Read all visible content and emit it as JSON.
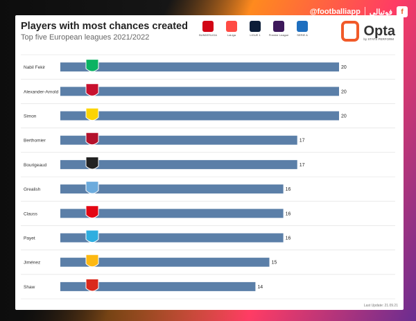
{
  "brand": {
    "handle": "@footballiapp",
    "name_fa": "فوتبالی"
  },
  "chart_data": {
    "type": "bar",
    "orientation": "horizontal",
    "title": "Players with most chances created",
    "subtitle": "Top five European leagues 2021/2022",
    "categories": [
      "Nabil Fekir",
      "Alexander-Arnold",
      "Simon",
      "Berthomier",
      "Bourigeaud",
      "Grealish",
      "Clauss",
      "Payet",
      "Jiménez",
      "Shaw"
    ],
    "values": [
      20,
      20,
      20,
      17,
      17,
      16,
      16,
      16,
      15,
      14
    ],
    "club_badges": [
      "betis-badge",
      "liverpool-badge",
      "nantes-badge",
      "clermont-badge",
      "rennes-badge",
      "man-city-badge",
      "lens-badge",
      "marseille-badge",
      "wolves-badge",
      "man-utd-badge"
    ],
    "badge_colors": [
      "#0bb363",
      "#c8102e",
      "#fcd405",
      "#b4122c",
      "#222222",
      "#6cabdd",
      "#e30613",
      "#2faee0",
      "#fdb913",
      "#da291c"
    ],
    "xlim": [
      0,
      20
    ],
    "bar_color": "#5b7fa8",
    "grid": true
  },
  "leagues": [
    {
      "name": "BUNDESLIGA",
      "color": "#d20515"
    },
    {
      "name": "LaLiga",
      "color": "#ff4b44"
    },
    {
      "name": "LIGUE 1",
      "color": "#0c1d38"
    },
    {
      "name": "Premier League",
      "color": "#3d195b"
    },
    {
      "name": "SERIE A",
      "color": "#1f6fbf"
    }
  ],
  "opta": {
    "word": "Opta",
    "by": "by STATS PERFORM"
  },
  "footer": {
    "last_update": "Last Update: 21.09.21"
  }
}
